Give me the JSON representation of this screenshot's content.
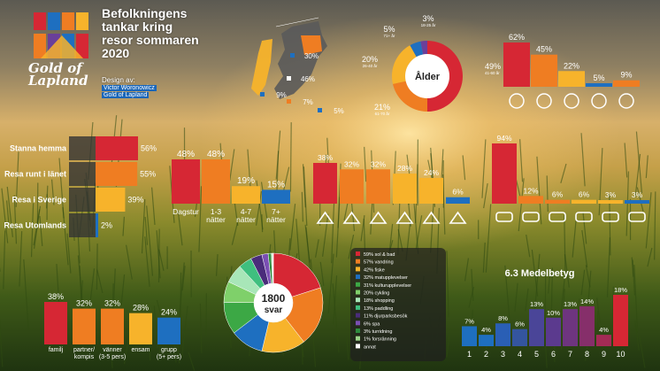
{
  "header": {
    "title_lines": [
      "Befolkningens",
      "tankar kring",
      "resor sommaren",
      "2020"
    ],
    "design_label": "Design av:",
    "designer": "Victor Woronowicz",
    "organization": "Gold of Lapland",
    "brand_lines": [
      "Gold of",
      "Lapland"
    ]
  },
  "colors": {
    "red": "#d62734",
    "orange": "#ef7d22",
    "yellow": "#f7b32b",
    "blue": "#1e6fc0",
    "purple": "#6a3f9a",
    "darkpurple": "#5b3a8e"
  },
  "chart_data": [
    {
      "id": "regions",
      "type": "map",
      "labels": [
        "30%",
        "46%",
        "9%",
        "7%",
        "5%"
      ]
    },
    {
      "id": "age",
      "type": "pie",
      "title": "Ålder",
      "slices": [
        {
          "label": "49%",
          "sub": "41-60 år",
          "value": 49,
          "color": "#d62734"
        },
        {
          "label": "21%",
          "sub": "61-70 år",
          "value": 21,
          "color": "#ef7d22"
        },
        {
          "label": "20%",
          "sub": "26-40 år",
          "value": 20,
          "color": "#f7b32b"
        },
        {
          "label": "5%",
          "sub": "71+ år",
          "value": 5,
          "color": "#1e6fc0"
        },
        {
          "label": "3%",
          "sub": "18-25 år",
          "value": 3,
          "color": "#6a3f9a"
        }
      ]
    },
    {
      "id": "company_icons",
      "type": "bar",
      "values": [
        62,
        45,
        22,
        5,
        9
      ],
      "labels": [
        "62%",
        "45%",
        "22%",
        "5%",
        "9%"
      ],
      "colors": [
        "#d62734",
        "#ef7d22",
        "#f7b32b",
        "#1e6fc0",
        "#ef7d22"
      ],
      "icons": [
        "rings-icon",
        "couple-icon",
        "family-icon",
        "person-icon",
        "other-icon"
      ]
    },
    {
      "id": "destination",
      "type": "bar",
      "orientation": "horizontal",
      "categories": [
        "Stanna hemma",
        "Resa runt i länet",
        "Resa i Sverige",
        "Resa Utomlands"
      ],
      "values": [
        56,
        55,
        39,
        2
      ],
      "labels": [
        "56%",
        "55%",
        "39%",
        "2%"
      ],
      "colors": [
        "#d62734",
        "#ef7d22",
        "#f7b32b",
        "#1e6fc0"
      ]
    },
    {
      "id": "length",
      "type": "bar",
      "categories": [
        "Dagstur",
        "1-3 nätter",
        "4-7 nätter",
        "7+ nätter"
      ],
      "values": [
        48,
        48,
        19,
        15
      ],
      "labels": [
        "48%",
        "48%",
        "19%",
        "15%"
      ],
      "colors": [
        "#d62734",
        "#ef7d22",
        "#f7b32b",
        "#1e6fc0"
      ]
    },
    {
      "id": "accommodation",
      "type": "bar",
      "values": [
        38,
        32,
        32,
        28,
        24,
        6
      ],
      "labels": [
        "38%",
        "32%",
        "32%",
        "28%",
        "24%",
        "6%"
      ],
      "colors": [
        "#d62734",
        "#ef7d22",
        "#ef7d22",
        "#f7b32b",
        "#f7b32b",
        "#1e6fc0"
      ],
      "icons": [
        "cabin-icon",
        "house-icon",
        "tent-icon",
        "caravan-icon",
        "hotel-icon",
        "hostel-icon"
      ]
    },
    {
      "id": "transport",
      "type": "bar",
      "values": [
        94,
        12,
        6,
        6,
        3,
        3
      ],
      "labels": [
        "94%",
        "12%",
        "6%",
        "6%",
        "3%",
        "3%"
      ],
      "colors": [
        "#d62734",
        "#ef7d22",
        "#ef7d22",
        "#f7b32b",
        "#f7b32b",
        "#1e6fc0"
      ],
      "icons": [
        "car-icon",
        "bicycle-icon",
        "boat-icon",
        "train-icon",
        "bus-icon",
        "plane-icon"
      ]
    },
    {
      "id": "companions",
      "type": "bar",
      "categories": [
        "familj",
        "partner/\nkompis",
        "vänner\n(3-5 pers)",
        "ensam",
        "grupp\n(5+ pers)"
      ],
      "values": [
        38,
        32,
        32,
        28,
        24
      ],
      "labels": [
        "38%",
        "32%",
        "32%",
        "28%",
        "24%"
      ],
      "colors": [
        "#d62734",
        "#ef7d22",
        "#ef7d22",
        "#f7b32b",
        "#1e6fc0"
      ]
    },
    {
      "id": "activities",
      "type": "pie",
      "center_value": "1800",
      "center_label": "svar",
      "slices": [
        {
          "label": "59% sol & bad",
          "value": 59,
          "color": "#d62734"
        },
        {
          "label": "57% vandring",
          "value": 57,
          "color": "#ef7d22"
        },
        {
          "label": "42% fiske",
          "value": 42,
          "color": "#f7b32b"
        },
        {
          "label": "32% matupplevelser",
          "value": 32,
          "color": "#1e6fc0"
        },
        {
          "label": "31% kulturupplevelser",
          "value": 31,
          "color": "#3ca845"
        },
        {
          "label": "20% cykling",
          "value": 20,
          "color": "#7fd06a"
        },
        {
          "label": "18% shopping",
          "value": 18,
          "color": "#a8e6b8"
        },
        {
          "label": "13% paddling",
          "value": 13,
          "color": "#3fbf7f"
        },
        {
          "label": "11% djurparksbesök",
          "value": 11,
          "color": "#4a2c7a"
        },
        {
          "label": "6% spa",
          "value": 6,
          "color": "#7a4fb3"
        },
        {
          "label": "3% turridning",
          "value": 3,
          "color": "#2e8b3e"
        },
        {
          "label": "1% forsränning",
          "value": 1,
          "color": "#9bd48a"
        },
        {
          "label": "annat",
          "value": 1,
          "color": "#ffffff"
        }
      ]
    },
    {
      "id": "rating",
      "type": "bar",
      "title": "6.3 Medelbetyg",
      "categories": [
        "1",
        "2",
        "3",
        "4",
        "5",
        "6",
        "7",
        "8",
        "9",
        "10"
      ],
      "values": [
        7,
        4,
        8,
        6,
        13,
        10,
        13,
        14,
        4,
        18
      ],
      "labels": [
        "7%",
        "4%",
        "8%",
        "6%",
        "13%",
        "10%",
        "13%",
        "14%",
        "4%",
        "18%"
      ],
      "colors": [
        "#1e6fc0",
        "#1e6fc0",
        "#2a5fb5",
        "#34559f",
        "#4a4598",
        "#5b3a8e",
        "#6e357f",
        "#862f6a",
        "#a42b55",
        "#d62734"
      ]
    }
  ]
}
